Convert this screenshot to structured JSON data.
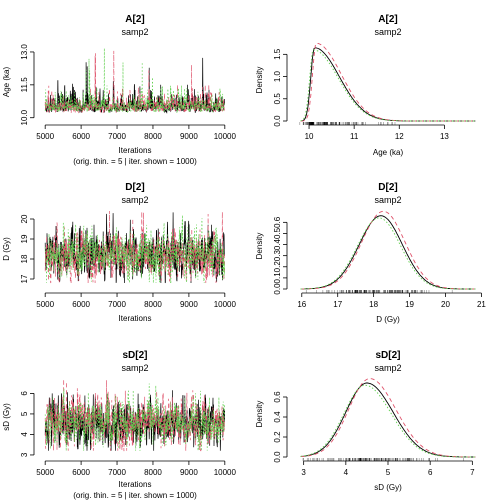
{
  "chart_data": [
    {
      "type": "line",
      "title": "A[2]",
      "subtitle": "samp2",
      "xlabel": "Iterations",
      "xlabel2": "(orig. thin. = 5 | iter. shown = 1000)",
      "ylabel": "Age (ka)",
      "xlim": [
        4800,
        10200
      ],
      "ylim": [
        9.85,
        13.5
      ],
      "xticks": [
        5000,
        6000,
        7000,
        8000,
        9000,
        10000
      ],
      "yticks": [
        10.0,
        11.5,
        13.0
      ],
      "ytick_labels": [
        "10.0",
        "11.5",
        "13.0"
      ],
      "trace": {
        "mean": 10.45,
        "sd": 0.38,
        "skew": "right",
        "min": 9.95,
        "max": 13.4
      },
      "series": [
        {
          "name": "",
          "color": "#000000",
          "dash": "solid"
        },
        {
          "name": "",
          "color": "#DF536B",
          "dash": "dashed"
        },
        {
          "name": "",
          "color": "#61D04F",
          "dash": "dotted"
        }
      ]
    },
    {
      "type": "line",
      "title": "A[2]",
      "subtitle": "samp2",
      "xlabel": "Age (ka)",
      "ylabel": "Density",
      "xlim": [
        9.6,
        13.9
      ],
      "ylim": [
        0,
        1.8
      ],
      "xticks": [
        10,
        11,
        12,
        13
      ],
      "yticks": [
        0.0,
        0.5,
        1.0,
        1.5
      ],
      "ytick_labels": [
        "0.0",
        "0.5",
        "1.0",
        "1.5"
      ],
      "density": {
        "mode": 10.12,
        "peak": 1.65,
        "left_sd": 0.08,
        "right_sd": 0.55
      },
      "series": [
        {
          "name": "",
          "color": "#000000",
          "dash": "solid"
        },
        {
          "name": "",
          "color": "#DF536B",
          "dash": "dashed"
        },
        {
          "name": "",
          "color": "#61D04F",
          "dash": "dotted"
        }
      ]
    },
    {
      "type": "line",
      "title": "D[2]",
      "subtitle": "samp2",
      "xlabel": "Iterations",
      "xlabel2": "",
      "ylabel": "D (Gy)",
      "xlim": [
        4800,
        10200
      ],
      "ylim": [
        16.5,
        20.5
      ],
      "xticks": [
        5000,
        6000,
        7000,
        8000,
        9000,
        10000
      ],
      "yticks": [
        17,
        18,
        19,
        20
      ],
      "ytick_labels": [
        "17",
        "18",
        "19",
        "20"
      ],
      "trace": {
        "mean": 18.2,
        "sd": 0.6,
        "skew": "none",
        "min": 16.8,
        "max": 20.4
      },
      "series": [
        {
          "name": "",
          "color": "#000000",
          "dash": "solid"
        },
        {
          "name": "",
          "color": "#DF536B",
          "dash": "dashed"
        },
        {
          "name": "",
          "color": "#61D04F",
          "dash": "dotted"
        }
      ]
    },
    {
      "type": "line",
      "title": "D[2]",
      "subtitle": "samp2",
      "xlabel": "D (Gy)",
      "ylabel": "Density",
      "xlim": [
        15.7,
        21.1
      ],
      "ylim": [
        0,
        0.72
      ],
      "xticks": [
        16,
        17,
        18,
        19,
        20,
        21
      ],
      "yticks": [
        0.0,
        0.1,
        0.2,
        0.3,
        0.4,
        0.5,
        0.6
      ],
      "ytick_labels": [
        "0.0",
        "0.1",
        "0.2",
        "0.3",
        "0.4",
        "0.5",
        "0.6"
      ],
      "density": {
        "mode": 18.2,
        "peak": 0.66,
        "left_sd": 0.6,
        "right_sd": 0.6
      },
      "series": [
        {
          "name": "",
          "color": "#000000",
          "dash": "solid"
        },
        {
          "name": "",
          "color": "#DF536B",
          "dash": "dashed"
        },
        {
          "name": "",
          "color": "#61D04F",
          "dash": "dotted"
        }
      ]
    },
    {
      "type": "line",
      "title": "sD[2]",
      "subtitle": "samp2",
      "xlabel": "Iterations",
      "xlabel2": "(orig. thin. = 5 | iter. shown = 1000)",
      "ylabel": "sD (Gy)",
      "xlim": [
        4800,
        10200
      ],
      "ylim": [
        2.9,
        6.8
      ],
      "xticks": [
        5000,
        6000,
        7000,
        8000,
        9000,
        10000
      ],
      "yticks": [
        3,
        4,
        5,
        6
      ],
      "ytick_labels": [
        "3",
        "4",
        "5",
        "6"
      ],
      "trace": {
        "mean": 4.6,
        "sd": 0.55,
        "skew": "none",
        "min": 3.2,
        "max": 6.7
      },
      "series": [
        {
          "name": "",
          "color": "#000000",
          "dash": "solid"
        },
        {
          "name": "",
          "color": "#DF536B",
          "dash": "dashed"
        },
        {
          "name": "",
          "color": "#61D04F",
          "dash": "dotted"
        }
      ]
    },
    {
      "type": "line",
      "title": "sD[2]",
      "subtitle": "samp2",
      "xlabel": "sD (Gy)",
      "ylabel": "Density",
      "xlim": [
        2.7,
        7.3
      ],
      "ylim": [
        0,
        0.8
      ],
      "xticks": [
        3,
        4,
        5,
        6,
        7
      ],
      "yticks": [
        0.0,
        0.2,
        0.4,
        0.6
      ],
      "ytick_labels": [
        "0.0",
        "0.2",
        "0.4",
        "0.6"
      ],
      "density": {
        "mode": 4.5,
        "peak": 0.74,
        "left_sd": 0.5,
        "right_sd": 0.62
      },
      "series": [
        {
          "name": "",
          "color": "#000000",
          "dash": "solid"
        },
        {
          "name": "",
          "color": "#DF536B",
          "dash": "dashed"
        },
        {
          "name": "",
          "color": "#61D04F",
          "dash": "dotted"
        }
      ]
    }
  ]
}
